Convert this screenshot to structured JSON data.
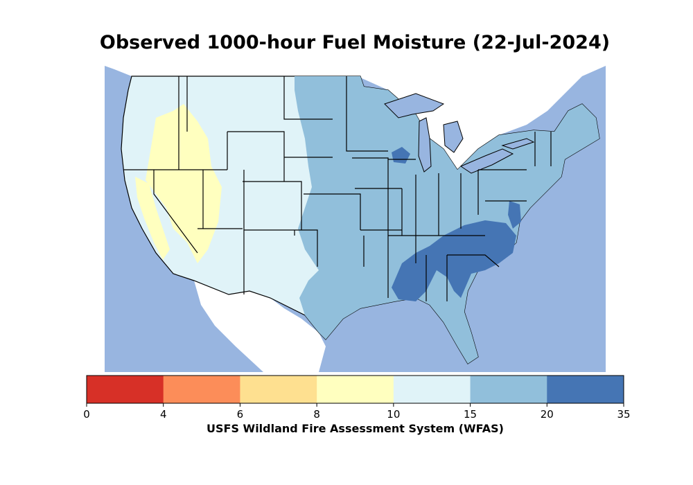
{
  "title": "Observed 1000-hour Fuel Moisture (22-Jul-2024)",
  "colorbar": {
    "caption": "USFS Wildland Fire Assessment System (WFAS)",
    "tick_labels": [
      "0",
      "4",
      "6",
      "8",
      "10",
      "15",
      "20",
      "35"
    ],
    "bins": [
      {
        "range": "0-4",
        "color": "#d73027"
      },
      {
        "range": "4-6",
        "color": "#fc8d59"
      },
      {
        "range": "6-8",
        "color": "#fee090"
      },
      {
        "range": "8-10",
        "color": "#ffffbf"
      },
      {
        "range": "10-15",
        "color": "#e0f3f8"
      },
      {
        "range": "15-20",
        "color": "#91bfdb"
      },
      {
        "range": "20-35",
        "color": "#4575b4"
      }
    ]
  },
  "colors": {
    "water": "#98b5e0",
    "land_outside": "#ffffff",
    "border": "#000000"
  }
}
